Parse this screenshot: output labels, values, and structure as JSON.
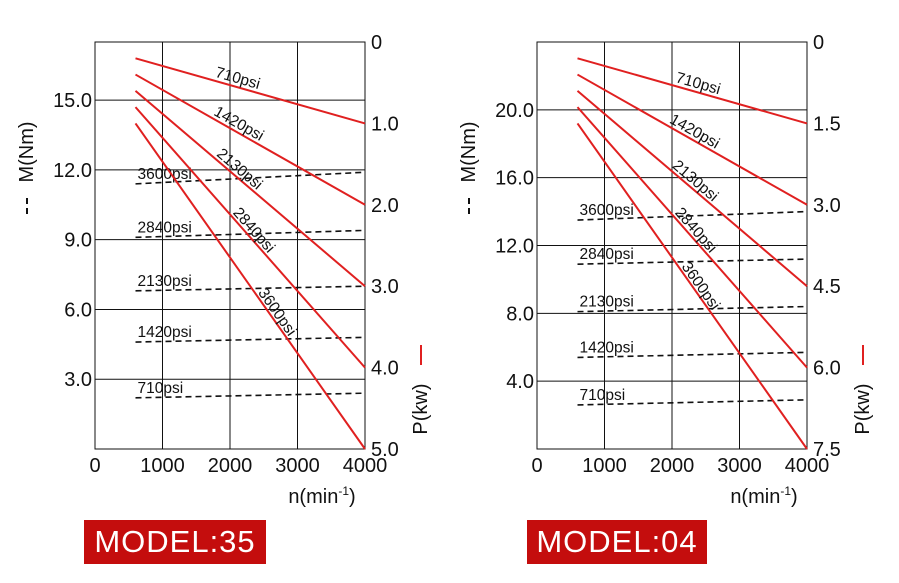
{
  "chart_data": [
    {
      "type": "line",
      "model_label": "MODEL:35",
      "xlabel": "n(min",
      "xlabel_sup": "-1",
      "xlabel_close": ")",
      "ylabel_left": "M(Nm)",
      "ylabel_right": "P(kw)",
      "xlim": [
        0,
        4000
      ],
      "x_ticks": [
        "0",
        "1000",
        "2000",
        "3000",
        "4000"
      ],
      "ylim_left": [
        0,
        17.5
      ],
      "y_ticks_left": [
        "15.0",
        "12.0",
        "9.0",
        "6.0",
        "3.0"
      ],
      "y_ticks_left_values": [
        15,
        12,
        9,
        6,
        3
      ],
      "ylim_right": [
        0,
        5
      ],
      "y_ticks_right": [
        "0",
        "1.0",
        "2.0",
        "3.0",
        "4.0",
        "5.0"
      ],
      "y_ticks_right_values": [
        0,
        1,
        2,
        3,
        4,
        5
      ],
      "grid": true,
      "power_series": [
        {
          "name": "710psi",
          "x": [
            600,
            4000
          ],
          "y": [
            0.2,
            1.0
          ]
        },
        {
          "name": "1420psi",
          "x": [
            600,
            4000
          ],
          "y": [
            0.4,
            2.0
          ]
        },
        {
          "name": "2130psi",
          "x": [
            600,
            4000
          ],
          "y": [
            0.6,
            3.0
          ]
        },
        {
          "name": "2840psi",
          "x": [
            600,
            4000
          ],
          "y": [
            0.8,
            4.0
          ]
        },
        {
          "name": "3600psi",
          "x": [
            600,
            4000
          ],
          "y": [
            1.0,
            5.0
          ]
        }
      ],
      "torque_series": [
        {
          "name": "3600psi",
          "x": [
            600,
            4000
          ],
          "y": [
            11.4,
            11.9
          ]
        },
        {
          "name": "2840psi",
          "x": [
            600,
            4000
          ],
          "y": [
            9.1,
            9.4
          ]
        },
        {
          "name": "2130psi",
          "x": [
            600,
            4000
          ],
          "y": [
            6.8,
            7.0
          ]
        },
        {
          "name": "1420psi",
          "x": [
            600,
            4000
          ],
          "y": [
            4.6,
            4.8
          ]
        },
        {
          "name": "710psi",
          "x": [
            600,
            4000
          ],
          "y": [
            2.2,
            2.4
          ]
        }
      ]
    },
    {
      "type": "line",
      "model_label": "MODEL:04",
      "xlabel": "n(min",
      "xlabel_sup": "-1",
      "xlabel_close": ")",
      "ylabel_left": "M(Nm)",
      "ylabel_right": "P(kw)",
      "xlim": [
        0,
        4000
      ],
      "x_ticks": [
        "0",
        "1000",
        "2000",
        "3000",
        "4000"
      ],
      "ylim_left": [
        0,
        24
      ],
      "y_ticks_left": [
        "20.0",
        "16.0",
        "12.0",
        "8.0",
        "4.0"
      ],
      "y_ticks_left_values": [
        20,
        16,
        12,
        8,
        4
      ],
      "ylim_right": [
        0,
        7.5
      ],
      "y_ticks_right": [
        "0",
        "1.5",
        "3.0",
        "4.5",
        "6.0",
        "7.5"
      ],
      "y_ticks_right_values": [
        0,
        1.5,
        3,
        4.5,
        6,
        7.5
      ],
      "grid": true,
      "power_series": [
        {
          "name": "710psi",
          "x": [
            600,
            4000
          ],
          "y": [
            0.3,
            1.5
          ]
        },
        {
          "name": "1420psi",
          "x": [
            600,
            4000
          ],
          "y": [
            0.6,
            3.0
          ]
        },
        {
          "name": "2130psi",
          "x": [
            600,
            4000
          ],
          "y": [
            0.9,
            4.5
          ]
        },
        {
          "name": "2840psi",
          "x": [
            600,
            4000
          ],
          "y": [
            1.2,
            6.0
          ]
        },
        {
          "name": "3600psi",
          "x": [
            600,
            4000
          ],
          "y": [
            1.5,
            7.5
          ]
        }
      ],
      "torque_series": [
        {
          "name": "3600psi",
          "x": [
            600,
            4000
          ],
          "y": [
            13.5,
            14.0
          ]
        },
        {
          "name": "2840psi",
          "x": [
            600,
            4000
          ],
          "y": [
            10.9,
            11.2
          ]
        },
        {
          "name": "2130psi",
          "x": [
            600,
            4000
          ],
          "y": [
            8.1,
            8.4
          ]
        },
        {
          "name": "1420psi",
          "x": [
            600,
            4000
          ],
          "y": [
            5.4,
            5.7
          ]
        },
        {
          "name": "710psi",
          "x": [
            600,
            4000
          ],
          "y": [
            2.6,
            2.9
          ]
        }
      ]
    }
  ],
  "colors": {
    "power_line": "#e02020",
    "torque_line": "#111111",
    "grid": "#111111",
    "badge_bg": "#c40d0d",
    "badge_text": "#ffffff"
  }
}
